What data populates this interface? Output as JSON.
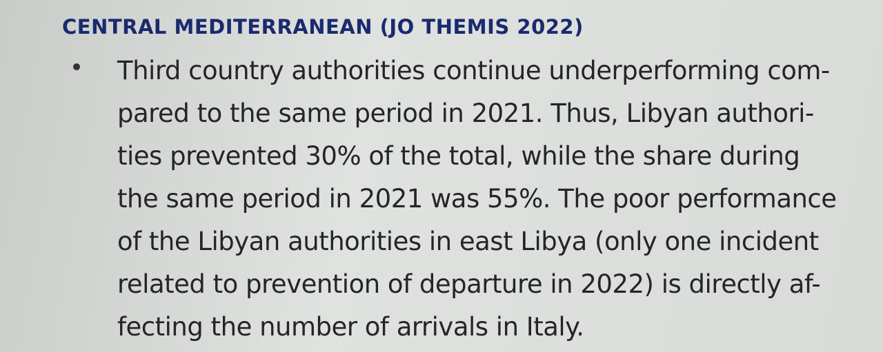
{
  "heading": "CENTRAL MEDITERRANEAN (JO THEMIS 2022)",
  "bullet": {
    "lines": [
      "Third country authorities continue underperforming com-",
      "pared to the same period in 2021. Thus, Libyan authori-",
      "ties prevented 30% of the total, while the share during",
      "the same period in 2021 was 55%. The poor performance",
      "of the Libyan authorities in east Libya (only one incident",
      "related to prevention of departure in 2022) is directly af-",
      "fecting the number of arrivals in Italy."
    ]
  }
}
